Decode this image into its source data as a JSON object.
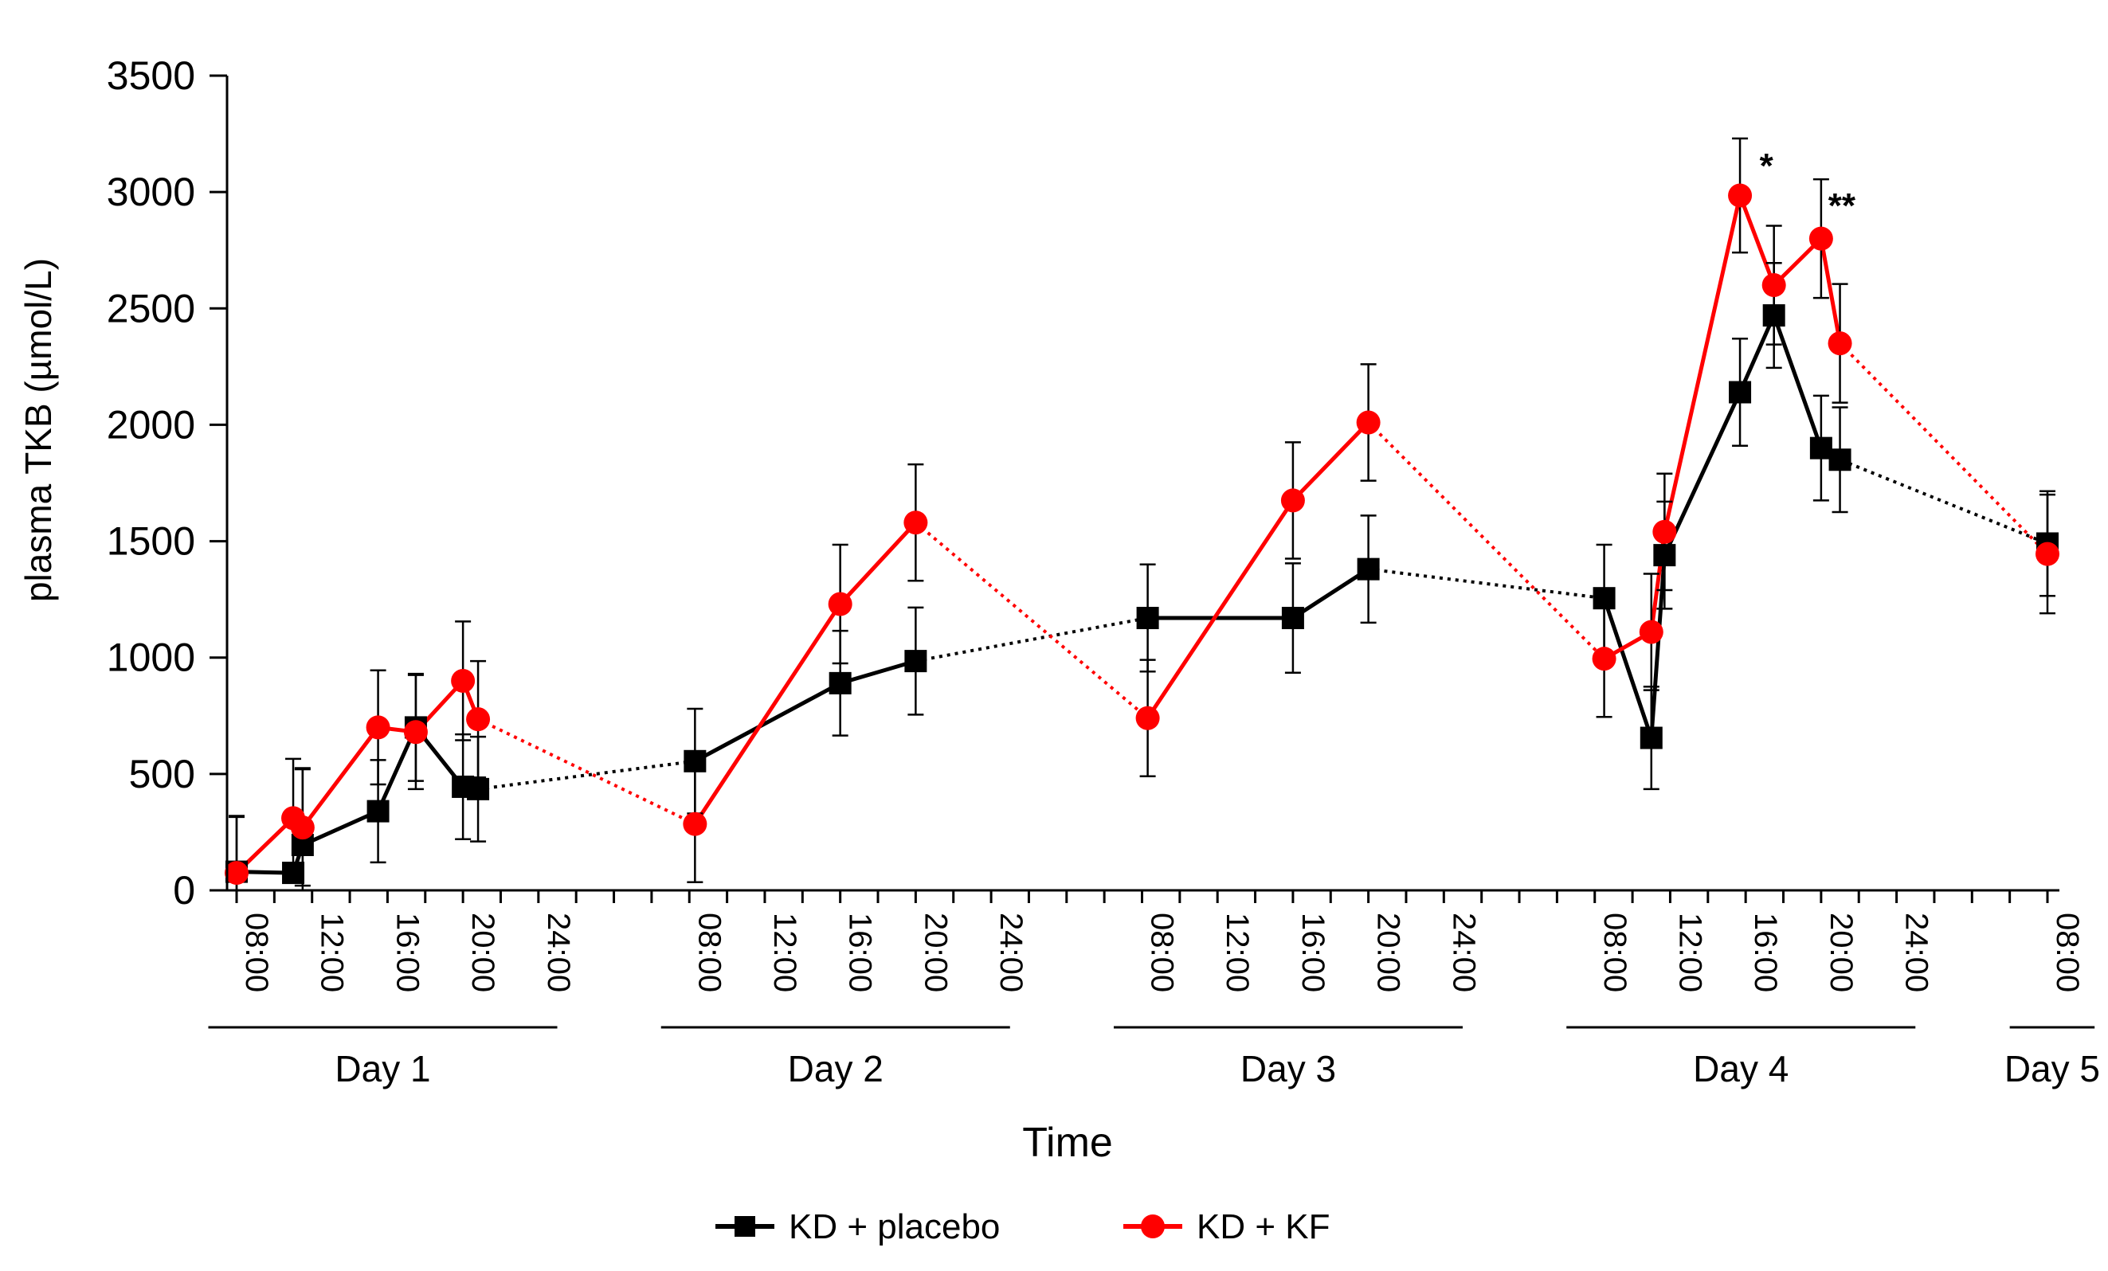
{
  "chart_data": {
    "type": "line",
    "title": "",
    "xlabel": "Time",
    "ylabel": "plasma TKB (µmol/L)",
    "ylim": [
      0,
      3500
    ],
    "yticks": [
      0,
      500,
      1000,
      1500,
      2000,
      2500,
      3000,
      3500
    ],
    "x_unit": "hours from Day 1 08:00",
    "xlim": [
      0,
      96
    ],
    "xticks": [
      {
        "x": 0,
        "label": "08:00"
      },
      {
        "x": 4,
        "label": "12:00"
      },
      {
        "x": 8,
        "label": "16:00"
      },
      {
        "x": 12,
        "label": "20:00"
      },
      {
        "x": 16,
        "label": "24:00"
      },
      {
        "x": 24,
        "label": "08:00"
      },
      {
        "x": 28,
        "label": "12:00"
      },
      {
        "x": 32,
        "label": "16:00"
      },
      {
        "x": 36,
        "label": "20:00"
      },
      {
        "x": 40,
        "label": "24:00"
      },
      {
        "x": 48,
        "label": "08:00"
      },
      {
        "x": 52,
        "label": "12:00"
      },
      {
        "x": 56,
        "label": "16:00"
      },
      {
        "x": 60,
        "label": "20:00"
      },
      {
        "x": 64,
        "label": "24:00"
      },
      {
        "x": 72,
        "label": "08:00"
      },
      {
        "x": 76,
        "label": "12:00"
      },
      {
        "x": 80,
        "label": "16:00"
      },
      {
        "x": 84,
        "label": "20:00"
      },
      {
        "x": 88,
        "label": "24:00"
      },
      {
        "x": 96,
        "label": "08:00"
      }
    ],
    "days": [
      {
        "label": "Day 1",
        "start": -1.5,
        "end": 17
      },
      {
        "label": "Day 2",
        "start": 22.5,
        "end": 41
      },
      {
        "label": "Day 3",
        "start": 46.5,
        "end": 65
      },
      {
        "label": "Day 4",
        "start": 70.5,
        "end": 89
      },
      {
        "label": "Day 5",
        "start": 94,
        "end": 98.5
      }
    ],
    "series": [
      {
        "name": "KD + placebo",
        "color": "#000000",
        "marker": "square",
        "points": [
          {
            "x": 0,
            "y": 80,
            "err": 240
          },
          {
            "x": 3,
            "y": 75,
            "err": 0
          },
          {
            "x": 3.5,
            "y": 195,
            "err": 330
          },
          {
            "x": 7.5,
            "y": 340,
            "err": 220
          },
          {
            "x": 9.5,
            "y": 700,
            "err": 230
          },
          {
            "x": 12,
            "y": 445,
            "err": 225
          },
          {
            "x": 12.8,
            "y": 435,
            "err": 225
          },
          {
            "x": 24.3,
            "y": 555,
            "err": 225
          },
          {
            "x": 32,
            "y": 890,
            "err": 225
          },
          {
            "x": 36,
            "y": 985,
            "err": 230
          },
          {
            "x": 48.3,
            "y": 1170,
            "err": 230
          },
          {
            "x": 56,
            "y": 1170,
            "err": 235
          },
          {
            "x": 60,
            "y": 1380,
            "err": 230
          },
          {
            "x": 72.5,
            "y": 1255,
            "err": 230
          },
          {
            "x": 75,
            "y": 655,
            "err": 220
          },
          {
            "x": 75.7,
            "y": 1440,
            "err": 230
          },
          {
            "x": 79.7,
            "y": 2140,
            "err": 230
          },
          {
            "x": 81.5,
            "y": 2470,
            "err": 225
          },
          {
            "x": 84,
            "y": 1900,
            "err": 225
          },
          {
            "x": 85,
            "y": 1850,
            "err": 225
          },
          {
            "x": 96,
            "y": 1490,
            "err": 225
          }
        ],
        "segments": [
          [
            0,
            6,
            "solid"
          ],
          [
            6,
            7,
            "dotted"
          ],
          [
            7,
            9,
            "solid"
          ],
          [
            9,
            10,
            "dotted"
          ],
          [
            10,
            12,
            "solid"
          ],
          [
            12,
            13,
            "dotted"
          ],
          [
            13,
            18,
            "solid"
          ],
          [
            18,
            20,
            "dotted"
          ]
        ]
      },
      {
        "name": "KD + KF",
        "color": "#ff0000",
        "marker": "circle",
        "points": [
          {
            "x": 0,
            "y": 75,
            "err": 240
          },
          {
            "x": 3,
            "y": 310,
            "err": 255
          },
          {
            "x": 3.5,
            "y": 270,
            "err": 250
          },
          {
            "x": 7.5,
            "y": 700,
            "err": 245
          },
          {
            "x": 9.5,
            "y": 680,
            "err": 245
          },
          {
            "x": 12,
            "y": 900,
            "err": 255
          },
          {
            "x": 12.8,
            "y": 735,
            "err": 250
          },
          {
            "x": 24.3,
            "y": 285,
            "err": 250
          },
          {
            "x": 32,
            "y": 1230,
            "err": 255
          },
          {
            "x": 36,
            "y": 1580,
            "err": 250
          },
          {
            "x": 48.3,
            "y": 740,
            "err": 250
          },
          {
            "x": 56,
            "y": 1675,
            "err": 250
          },
          {
            "x": 60,
            "y": 2010,
            "err": 250
          },
          {
            "x": 72.5,
            "y": 995,
            "err": 250
          },
          {
            "x": 75,
            "y": 1110,
            "err": 250
          },
          {
            "x": 75.7,
            "y": 1540,
            "err": 250
          },
          {
            "x": 79.7,
            "y": 2985,
            "err": 245
          },
          {
            "x": 81.5,
            "y": 2600,
            "err": 255
          },
          {
            "x": 84,
            "y": 2800,
            "err": 255
          },
          {
            "x": 85,
            "y": 2350,
            "err": 255
          },
          {
            "x": 96,
            "y": 1445,
            "err": 255
          }
        ],
        "segments": [
          [
            0,
            6,
            "solid"
          ],
          [
            6,
            7,
            "dotted"
          ],
          [
            7,
            9,
            "solid"
          ],
          [
            9,
            10,
            "dotted"
          ],
          [
            10,
            12,
            "solid"
          ],
          [
            12,
            13,
            "dotted"
          ],
          [
            13,
            19,
            "solid"
          ],
          [
            19,
            20,
            "dotted"
          ]
        ]
      }
    ],
    "annotations": [
      {
        "text": "*",
        "x": 81.1,
        "y": 3130
      },
      {
        "text": "**",
        "x": 85.1,
        "y": 2960
      }
    ],
    "legend": {
      "position": "bottom-center"
    }
  }
}
